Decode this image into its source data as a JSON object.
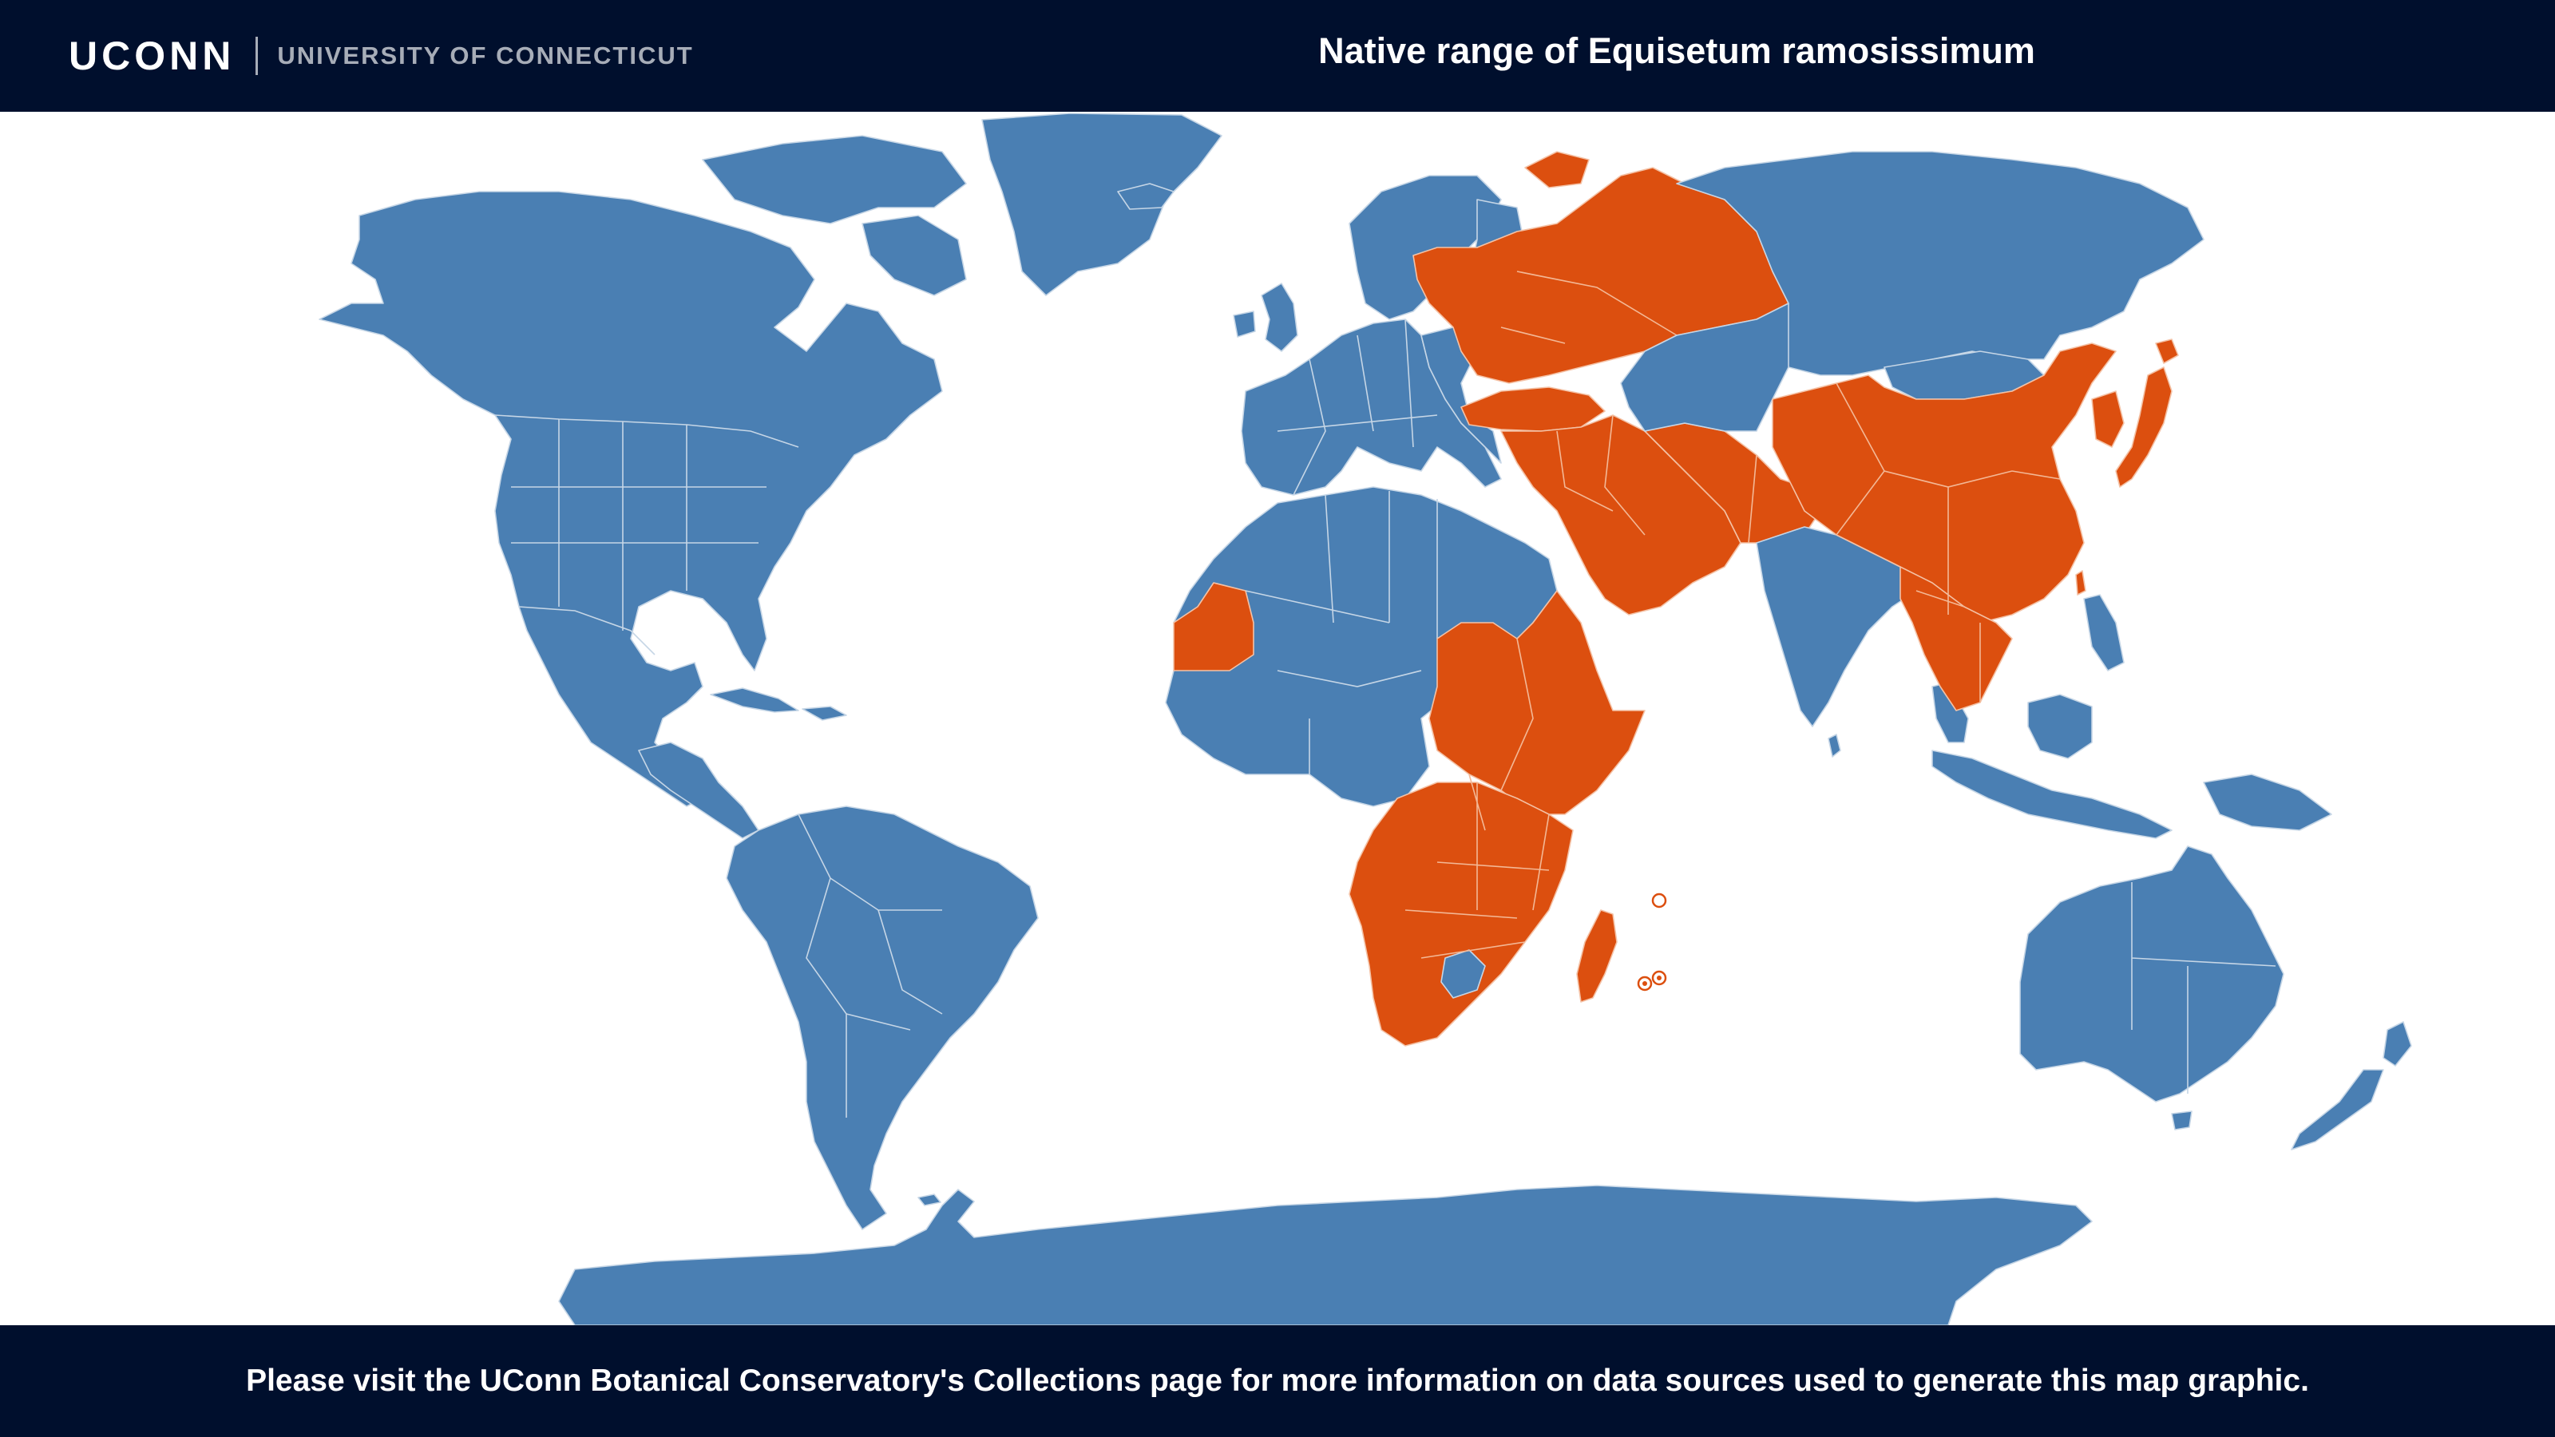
{
  "header": {
    "logo_mark": "UCONN",
    "logo_text": "UNIVERSITY OF CONNECTICUT",
    "map_title": "Native range of Equisetum ramosissimum"
  },
  "footer": {
    "note": "Please visit the UConn Botanical Conservatory's Collections page for more information on data sources used to generate this map graphic."
  },
  "map": {
    "species": "Equisetum ramosissimum",
    "colors": {
      "native": "#dc4f0f",
      "not_native": "#4a7fb3",
      "ocean": "#ffffff",
      "bars": "#000f2d"
    },
    "native_regions": [
      "Mauritania",
      "Sudan",
      "Ethiopia",
      "Somalia",
      "Kenya",
      "Tanzania",
      "Democratic Republic of the Congo",
      "Angola",
      "Zambia",
      "Zimbabwe",
      "Mozambique",
      "Namibia",
      "South Africa",
      "Madagascar",
      "Mauritius",
      "Réunion",
      "Ukraine",
      "Belarus",
      "European Russia",
      "Turkey",
      "Caucasus",
      "Middle East",
      "Arabian Peninsula",
      "Iran",
      "Pakistan",
      "China",
      "Korea",
      "Japan",
      "Myanmar",
      "Thailand",
      "Indochina"
    ]
  }
}
